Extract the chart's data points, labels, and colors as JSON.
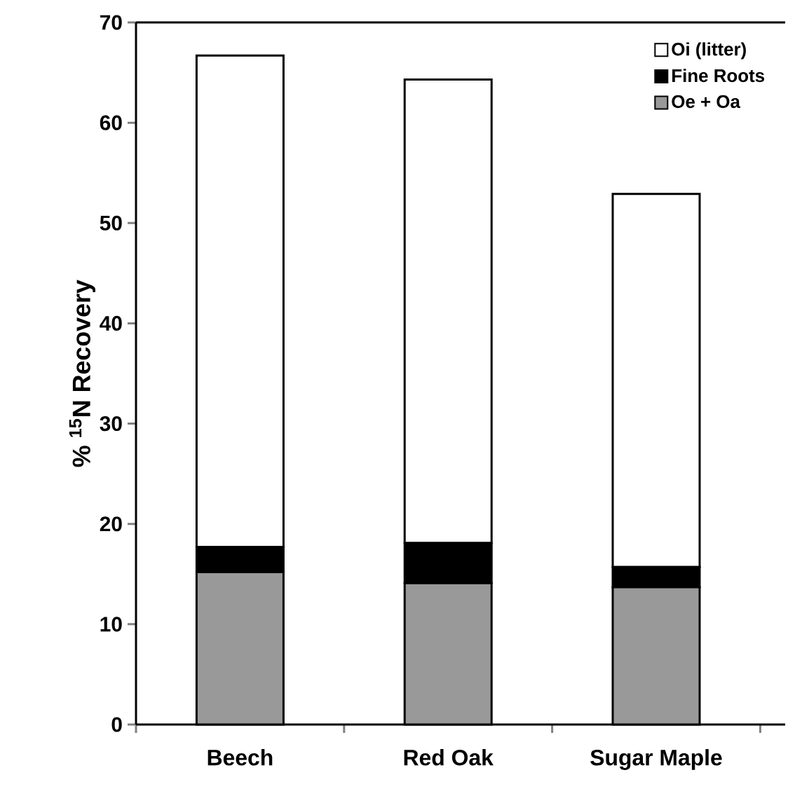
{
  "chart_data": {
    "type": "bar",
    "stacked": true,
    "ylabel": "% $^{15}$N Recovery",
    "categories": [
      "Beech",
      "Red Oak",
      "Sugar Maple"
    ],
    "series": [
      {
        "name": "Oe + Oa",
        "color": "#999999",
        "values": [
          15.2,
          14.1,
          13.7
        ]
      },
      {
        "name": "Fine Roots",
        "color": "#000000",
        "values": [
          2.5,
          4.0,
          2.0
        ]
      },
      {
        "name": "Oi (litter)",
        "color": "#ffffff",
        "values": [
          49.0,
          46.2,
          37.2
        ]
      }
    ],
    "ylim": [
      0,
      70
    ],
    "yticks": [
      0,
      10,
      20,
      30,
      40,
      50,
      60,
      70
    ],
    "grid": false,
    "legend": "top right"
  }
}
